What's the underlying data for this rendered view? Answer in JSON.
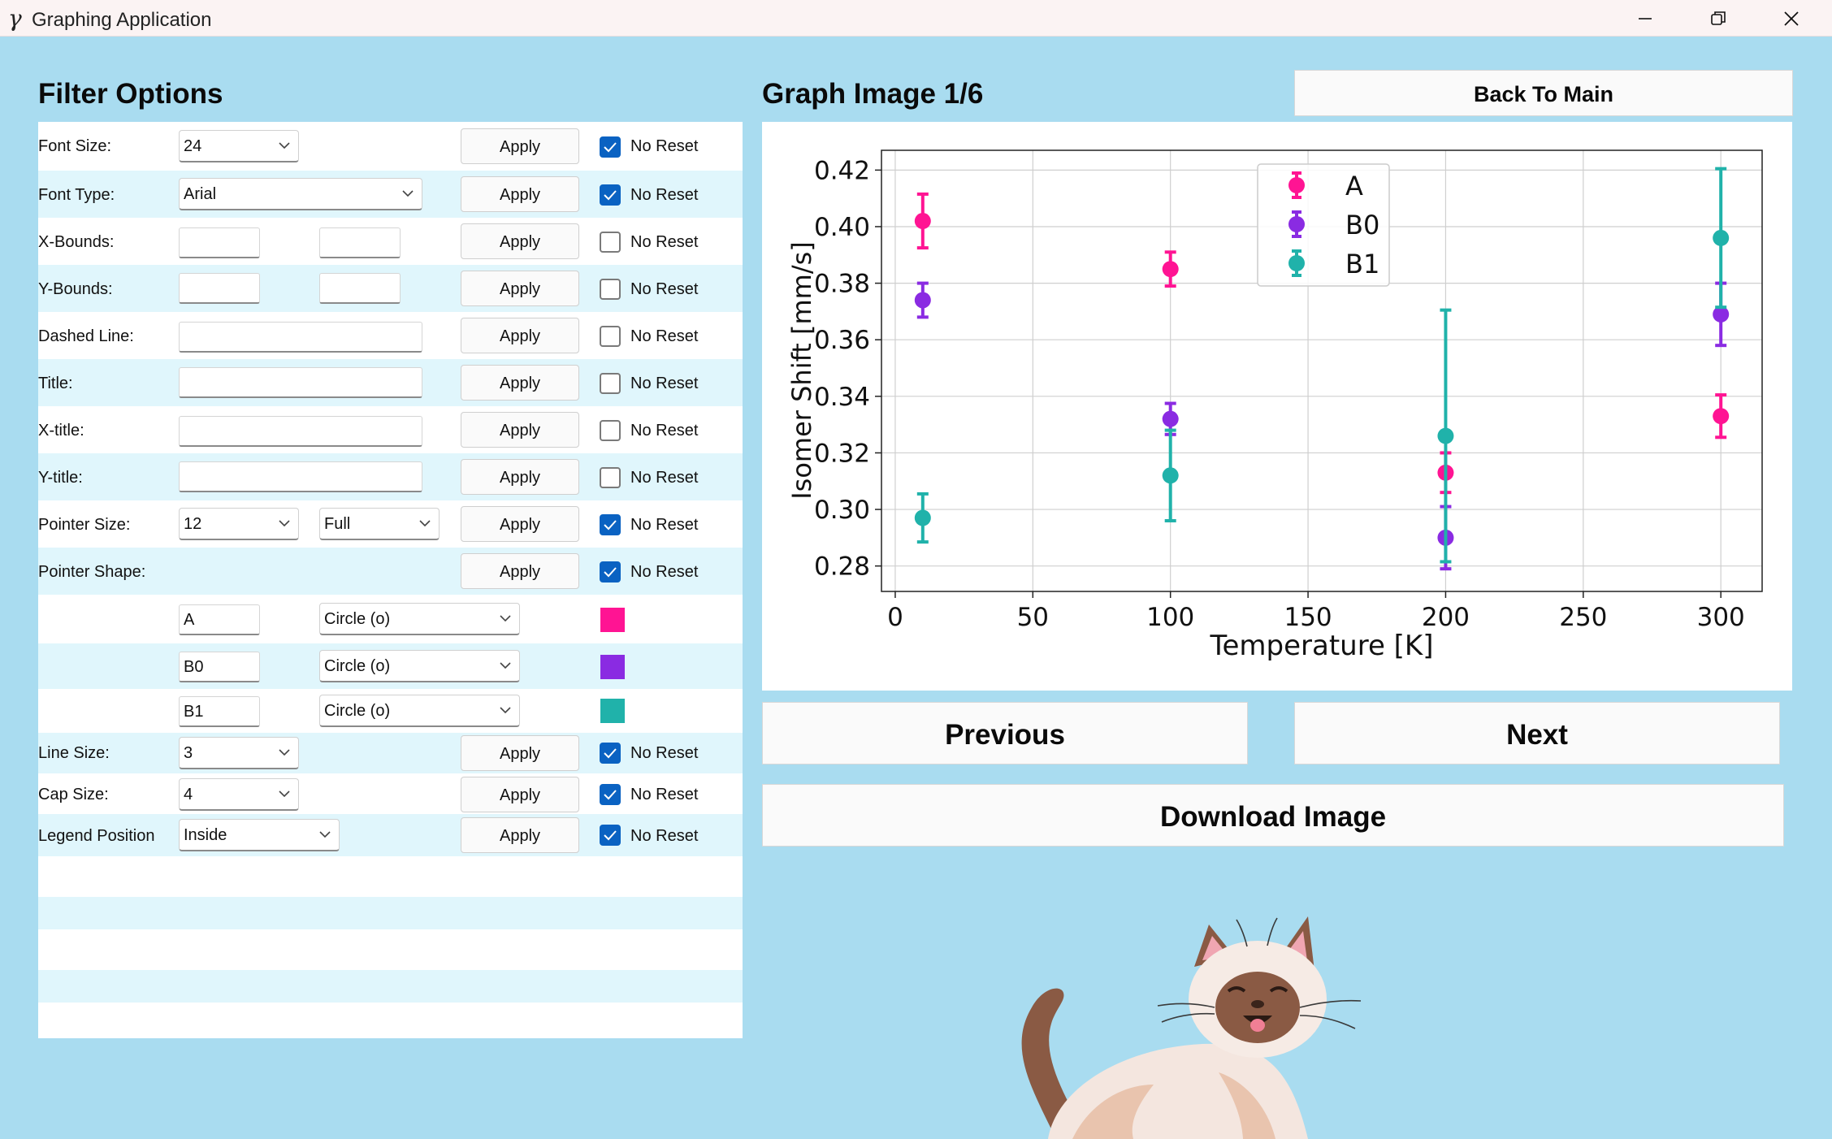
{
  "window": {
    "title": "Graphing Application",
    "icon": "gamma-icon"
  },
  "filter_panel": {
    "title": "Filter Options",
    "apply_label": "Apply",
    "no_reset_label": "No Reset",
    "rows": [
      {
        "label": "Font Size:",
        "value": "24",
        "no_reset": true
      },
      {
        "label": "Font Type:",
        "value": "Arial",
        "no_reset": true
      },
      {
        "label": "X-Bounds:",
        "min": "",
        "max": "",
        "no_reset": false
      },
      {
        "label": "Y-Bounds:",
        "min": "",
        "max": "",
        "no_reset": false
      },
      {
        "label": "Dashed Line:",
        "value": "",
        "no_reset": false
      },
      {
        "label": "Title:",
        "value": "",
        "no_reset": false
      },
      {
        "label": "X-title:",
        "value": "",
        "no_reset": false
      },
      {
        "label": "Y-title:",
        "value": "",
        "no_reset": false
      },
      {
        "label": "Pointer Size:",
        "value": "12",
        "fill": "Full",
        "no_reset": true
      },
      {
        "label": "Pointer Shape:",
        "no_reset": true
      },
      {
        "label": "Line Size:",
        "value": "3",
        "no_reset": true
      },
      {
        "label": "Cap Size:",
        "value": "4",
        "no_reset": true
      },
      {
        "label": "Legend Position",
        "value": "Inside",
        "no_reset": true
      }
    ],
    "series_shapes": [
      {
        "name": "A",
        "shape": "Circle (o)",
        "color": "#ff1493"
      },
      {
        "name": "B0",
        "shape": "Circle (o)",
        "color": "#8a2be2"
      },
      {
        "name": "B1",
        "shape": "Circle (o)",
        "color": "#20b2aa"
      }
    ]
  },
  "graph_panel": {
    "title": "Graph Image 1/6",
    "back_label": "Back To Main",
    "previous_label": "Previous",
    "next_label": "Next",
    "download_label": "Download Image"
  },
  "chart_data": {
    "type": "scatter",
    "title": "",
    "xlabel": "Temperature [K]",
    "ylabel": "Isomer Shift [mm/s]",
    "xlim": [
      -5,
      315
    ],
    "ylim": [
      0.271,
      0.427
    ],
    "xticks": [
      0,
      50,
      100,
      150,
      200,
      250,
      300
    ],
    "yticks": [
      0.28,
      0.3,
      0.32,
      0.34,
      0.36,
      0.38,
      0.4,
      0.42
    ],
    "xtick_labels": [
      "0",
      "50",
      "100",
      "150",
      "200",
      "250",
      "300"
    ],
    "ytick_labels": [
      "0.28",
      "0.30",
      "0.32",
      "0.34",
      "0.36",
      "0.38",
      "0.40",
      "0.42"
    ],
    "grid": true,
    "legend": "top-center",
    "series": [
      {
        "name": "A",
        "color": "#ff1493",
        "x": [
          10,
          100,
          200,
          300
        ],
        "y": [
          0.402,
          0.385,
          0.313,
          0.333
        ],
        "err": [
          0.0095,
          0.006,
          0.007,
          0.0075
        ]
      },
      {
        "name": "B0",
        "color": "#8a2be2",
        "x": [
          10,
          100,
          200,
          300
        ],
        "y": [
          0.374,
          0.332,
          0.29,
          0.369
        ],
        "err": [
          0.006,
          0.0055,
          0.011,
          0.011
        ]
      },
      {
        "name": "B1",
        "color": "#20b2aa",
        "x": [
          10,
          100,
          200,
          300
        ],
        "y": [
          0.297,
          0.312,
          0.326,
          0.396
        ],
        "err": [
          0.0085,
          0.016,
          0.0445,
          0.0245
        ]
      }
    ]
  }
}
